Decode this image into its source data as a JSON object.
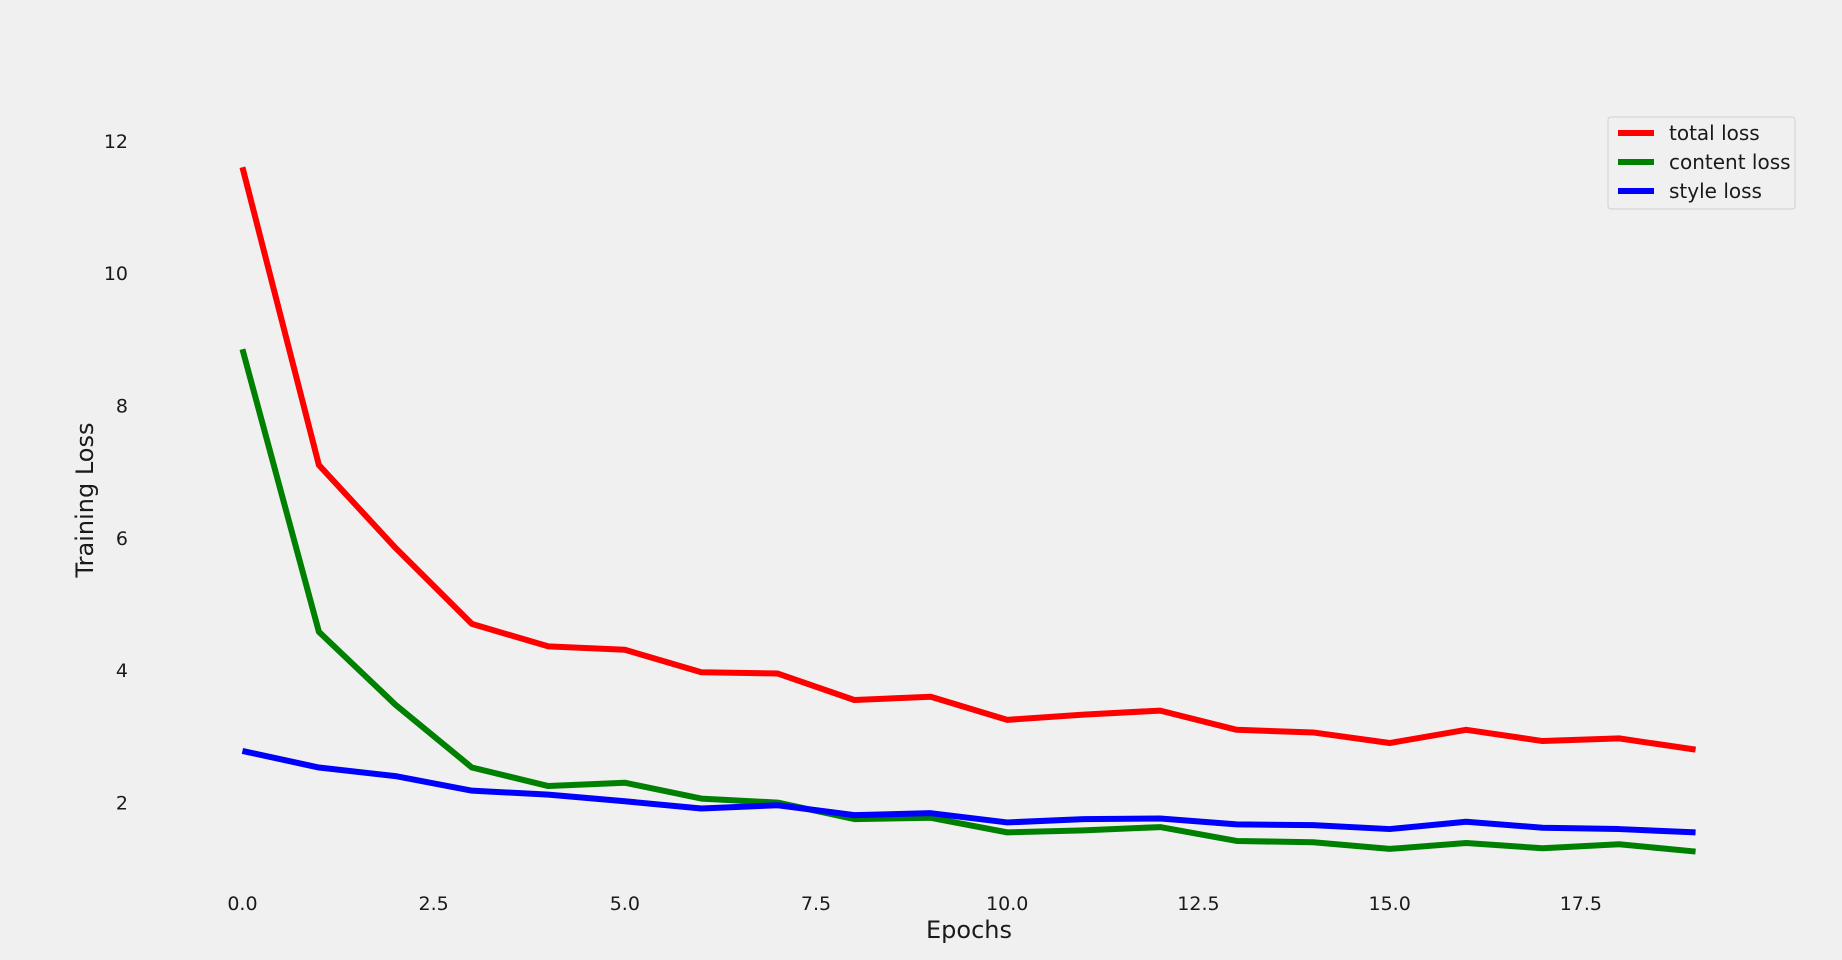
{
  "chart_data": {
    "type": "line",
    "title": "",
    "xlabel": "Epochs",
    "ylabel": "Training Loss",
    "x": [
      0,
      1,
      2,
      3,
      4,
      5,
      6,
      7,
      8,
      9,
      10,
      11,
      12,
      13,
      14,
      15,
      16,
      17,
      18,
      19
    ],
    "xlim": [
      -1.3,
      20.3
    ],
    "ylim": [
      0.8,
      13.1
    ],
    "xticks": [
      0.0,
      2.5,
      5.0,
      7.5,
      10.0,
      12.5,
      15.0,
      17.5
    ],
    "xtick_labels": [
      "0.0",
      "2.5",
      "5.0",
      "7.5",
      "10.0",
      "12.5",
      "15.0",
      "17.5"
    ],
    "yticks": [
      2,
      4,
      6,
      8,
      10,
      12
    ],
    "ytick_labels": [
      "2",
      "4",
      "6",
      "8",
      "10",
      "12"
    ],
    "grid": false,
    "legend_position": "top-right",
    "series": [
      {
        "name": "total loss",
        "color": "#ff0000",
        "values": [
          11.6,
          7.1,
          5.85,
          4.7,
          4.36,
          4.31,
          3.97,
          3.95,
          3.55,
          3.6,
          3.25,
          3.33,
          3.39,
          3.1,
          3.06,
          2.9,
          3.1,
          2.93,
          2.97,
          2.8
        ]
      },
      {
        "name": "content loss",
        "color": "#008000",
        "values": [
          8.85,
          4.58,
          3.48,
          2.53,
          2.25,
          2.3,
          2.06,
          2.0,
          1.75,
          1.77,
          1.55,
          1.58,
          1.63,
          1.42,
          1.4,
          1.3,
          1.39,
          1.31,
          1.37,
          1.26
        ]
      },
      {
        "name": "style loss",
        "color": "#0000ff",
        "values": [
          2.78,
          2.53,
          2.4,
          2.18,
          2.12,
          2.02,
          1.91,
          1.96,
          1.81,
          1.84,
          1.7,
          1.75,
          1.76,
          1.67,
          1.66,
          1.6,
          1.71,
          1.62,
          1.6,
          1.55
        ]
      }
    ]
  }
}
